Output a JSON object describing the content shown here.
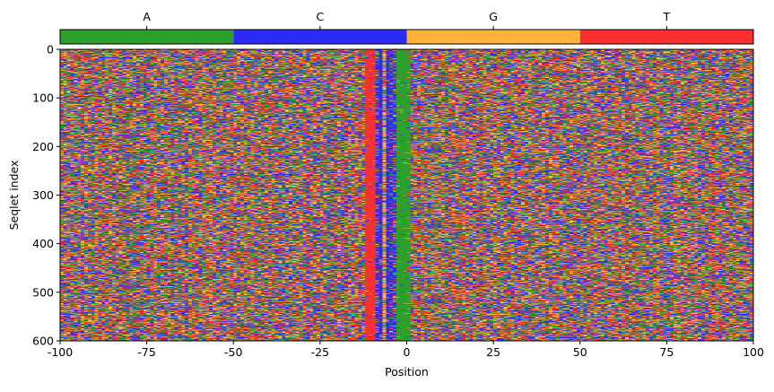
{
  "chart_data": {
    "type": "heatmap",
    "title": "",
    "xlabel": "Position",
    "ylabel": "Seqlet index",
    "xlim": [
      -100,
      100
    ],
    "ylim": [
      600,
      0
    ],
    "x_ticks": [
      -100,
      -75,
      -50,
      -25,
      0,
      25,
      50,
      75,
      100
    ],
    "y_ticks": [
      0,
      100,
      200,
      300,
      400,
      500,
      600
    ],
    "categories": [
      "A",
      "C",
      "G",
      "T"
    ],
    "colors": {
      "A": "#2ca02c",
      "C": "#2b2bfa",
      "G": "#ffb23c",
      "T": "#fa3030"
    },
    "colorbar": {
      "position": "top",
      "labels": [
        "A",
        "C",
        "G",
        "T"
      ]
    },
    "n_rows": 600,
    "n_positions": 200,
    "conserved_positions": [
      {
        "x": -12,
        "base": "T",
        "frequency": 0.95
      },
      {
        "x": -11,
        "base": "T",
        "frequency": 0.95
      },
      {
        "x": -10,
        "base": "T",
        "frequency": 0.9
      },
      {
        "x": -9,
        "base": "C",
        "frequency": 0.5
      },
      {
        "x": -8,
        "base": "C",
        "frequency": 0.9
      },
      {
        "x": -7,
        "base": "G",
        "frequency": 0.4
      },
      {
        "x": -6,
        "base": "C",
        "frequency": 0.85
      },
      {
        "x": -5,
        "base": "C",
        "frequency": 0.6
      },
      {
        "x": -4,
        "base": "C",
        "frequency": 0.5
      },
      {
        "x": -3,
        "base": "A",
        "frequency": 0.95
      },
      {
        "x": -2,
        "base": "A",
        "frequency": 0.95
      },
      {
        "x": -1,
        "base": "A",
        "frequency": 0.95
      },
      {
        "x": 0,
        "base": "A",
        "frequency": 0.9
      }
    ],
    "background_frequencies": {
      "A": 0.25,
      "C": 0.25,
      "G": 0.25,
      "T": 0.25
    }
  }
}
